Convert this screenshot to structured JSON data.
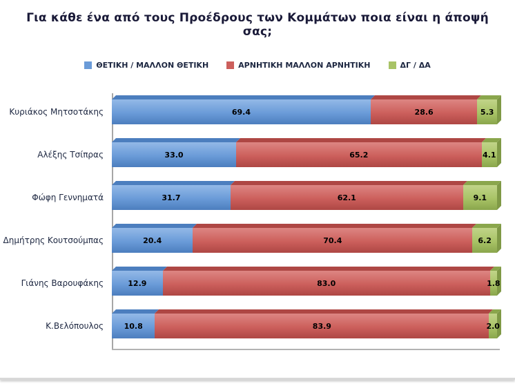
{
  "title": "Για κάθε ένα από τους Προέδρους των Κομμάτων ποια είναι η άποψή σας;",
  "chart_data": {
    "type": "bar",
    "orientation": "horizontal",
    "stacked": true,
    "style": "3d",
    "title": "Για κάθε ένα από τους Προέδρους των Κομμάτων ποια είναι η άποψή σας;",
    "legend_position": "top",
    "value_labels": true,
    "xlim": [
      0,
      100
    ],
    "categories": [
      "Κυριάκος Μητσοτάκης",
      "Αλέξης Τσίπρας",
      "Φώφη Γεννηματά",
      "Δημήτρης Κουτσούμπας",
      "Γιάνης Βαρουφάκης",
      "Κ.Βελόπουλος"
    ],
    "series": [
      {
        "name": "ΘΕΤΙΚΗ / ΜΑΛΛΟΝ ΘΕΤΙΚΗ",
        "color": "#6A9BD8",
        "color_light": "#93B9E7",
        "color_dark": "#4C7EBE",
        "values": [
          69.4,
          33.0,
          31.7,
          20.4,
          12.9,
          10.8
        ]
      },
      {
        "name": "ΑΡΝΗΤΙΚΗ ΜΑΛΛΟΝ ΑΡΝΗΤΙΚΗ",
        "color": "#CC5F5C",
        "color_light": "#DD8683",
        "color_dark": "#AE4744",
        "values": [
          28.6,
          65.2,
          62.1,
          70.4,
          83.0,
          83.9
        ]
      },
      {
        "name": "ΔΓ / ΔΑ",
        "color": "#A8C366",
        "color_light": "#C1D489",
        "color_dark": "#8AA64C",
        "values": [
          5.3,
          4.1,
          9.1,
          6.2,
          1.8,
          2.0
        ]
      }
    ]
  }
}
